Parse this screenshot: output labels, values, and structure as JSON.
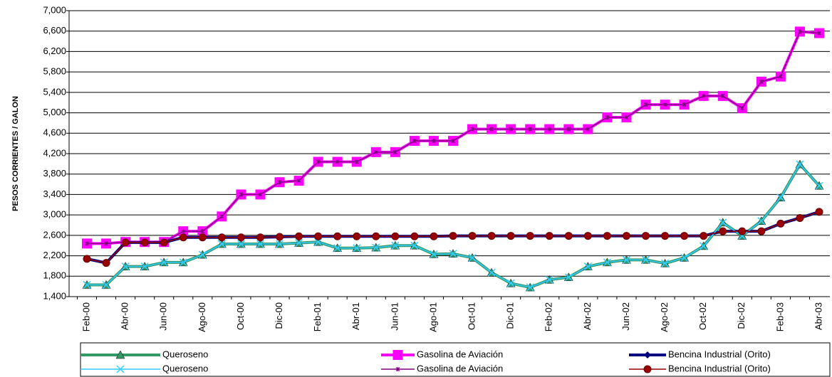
{
  "chart_data": {
    "type": "line",
    "y_label": "PESOS CORRIENTES / GALON",
    "categories": [
      "Feb-00",
      null,
      "Abr-00",
      null,
      "Jun-00",
      null,
      "Ago-00",
      null,
      "Oct-00",
      null,
      "Dic-00",
      null,
      "Feb-01",
      null,
      "Abr-01",
      null,
      "Jun-01",
      null,
      "Ago-01",
      null,
      "Oct-01",
      null,
      "Dic-01",
      null,
      "Feb-02",
      null,
      "Abr-02",
      null,
      "Jun-02",
      null,
      "Ago-02",
      null,
      "Oct-02",
      null,
      "Dic-02",
      null,
      "Feb-03",
      null,
      "Abr-03"
    ],
    "ylim": [
      1400,
      7000
    ],
    "yticks": [
      {
        "value": 1400,
        "label": "1,400"
      },
      {
        "value": 1800,
        "label": "1,800"
      },
      {
        "value": 2200,
        "label": "2,200"
      },
      {
        "value": 2600,
        "label": "2,600"
      },
      {
        "value": 3000,
        "label": "3,000"
      },
      {
        "value": 3400,
        "label": "3,400"
      },
      {
        "value": 3800,
        "label": "3,800"
      },
      {
        "value": 4200,
        "label": "4,200"
      },
      {
        "value": 4600,
        "label": "4,600"
      },
      {
        "value": 5000,
        "label": "5,000"
      },
      {
        "value": 5400,
        "label": "5,400"
      },
      {
        "value": 5800,
        "label": "5,800"
      },
      {
        "value": 6200,
        "label": "6,200"
      },
      {
        "value": 6600,
        "label": "6,600"
      },
      {
        "value": 7000,
        "label": "7,000"
      }
    ],
    "grid": true,
    "legend": "bottom",
    "series": [
      {
        "name": "Queroseno",
        "color": "#339966",
        "marker": "triangle",
        "line_width": 4,
        "values": [
          1630,
          1630,
          1990,
          1990,
          2070,
          2070,
          2220,
          2430,
          2430,
          2430,
          2430,
          2450,
          2470,
          2350,
          2350,
          2360,
          2400,
          2400,
          2230,
          2240,
          2160,
          1870,
          1660,
          1580,
          1730,
          1780,
          1990,
          2070,
          2120,
          2120,
          2050,
          2160,
          2390,
          2850,
          2590,
          2880,
          3340,
          3990,
          3570
        ]
      },
      {
        "name": "Gasolina de Aviación",
        "color": "#ff00ff",
        "marker": "square",
        "line_width": 4,
        "values": [
          2440,
          2440,
          2470,
          2470,
          2470,
          2680,
          2680,
          2970,
          3400,
          3400,
          3640,
          3670,
          4040,
          4040,
          4040,
          4230,
          4230,
          4450,
          4450,
          4450,
          4680,
          4680,
          4680,
          4680,
          4680,
          4680,
          4680,
          4910,
          4910,
          5160,
          5160,
          5160,
          5330,
          5330,
          5090,
          5610,
          5710,
          6590,
          6560
        ]
      },
      {
        "name": "Bencina Industrial (Orito)",
        "color": "#000080",
        "marker": "diamond",
        "line_width": 4,
        "values": [
          2140,
          2060,
          2460,
          2460,
          2460,
          2560,
          2560,
          2560,
          2560,
          2560,
          2570,
          2580,
          2580,
          2580,
          2580,
          2580,
          2580,
          2580,
          2580,
          2590,
          2590,
          2590,
          2590,
          2590,
          2590,
          2590,
          2590,
          2590,
          2590,
          2590,
          2590,
          2590,
          2590,
          2680,
          2680,
          2680,
          2830,
          2940,
          3060
        ]
      },
      {
        "name": "Queroseno",
        "color": "#33ccff",
        "marker": "x",
        "line_width": 1.5,
        "values": [
          1630,
          1630,
          1990,
          1990,
          2070,
          2070,
          2220,
          2430,
          2430,
          2430,
          2430,
          2450,
          2470,
          2350,
          2350,
          2360,
          2400,
          2400,
          2230,
          2240,
          2160,
          1870,
          1660,
          1580,
          1730,
          1780,
          1990,
          2070,
          2120,
          2120,
          2050,
          2160,
          2390,
          2850,
          2590,
          2880,
          3340,
          3990,
          3570
        ]
      },
      {
        "name": "Gasolina de Aviación",
        "color": "#800080",
        "marker": "star",
        "line_width": 1.5,
        "values": [
          2440,
          2440,
          2470,
          2470,
          2470,
          2680,
          2680,
          2970,
          3400,
          3400,
          3640,
          3670,
          4040,
          4040,
          4040,
          4230,
          4230,
          4450,
          4450,
          4450,
          4680,
          4680,
          4680,
          4680,
          4680,
          4680,
          4680,
          4910,
          4910,
          5160,
          5160,
          5160,
          5330,
          5330,
          5090,
          5610,
          5710,
          6590,
          6560
        ]
      },
      {
        "name": "Bencina Industrial (Orito)",
        "color": "#990000",
        "marker": "circle",
        "line_width": 1.5,
        "values": [
          2140,
          2060,
          2460,
          2460,
          2460,
          2560,
          2560,
          2560,
          2560,
          2560,
          2570,
          2580,
          2580,
          2580,
          2580,
          2580,
          2580,
          2580,
          2580,
          2590,
          2590,
          2590,
          2590,
          2590,
          2590,
          2590,
          2590,
          2590,
          2590,
          2590,
          2590,
          2590,
          2590,
          2680,
          2680,
          2680,
          2830,
          2940,
          3060
        ]
      }
    ]
  }
}
